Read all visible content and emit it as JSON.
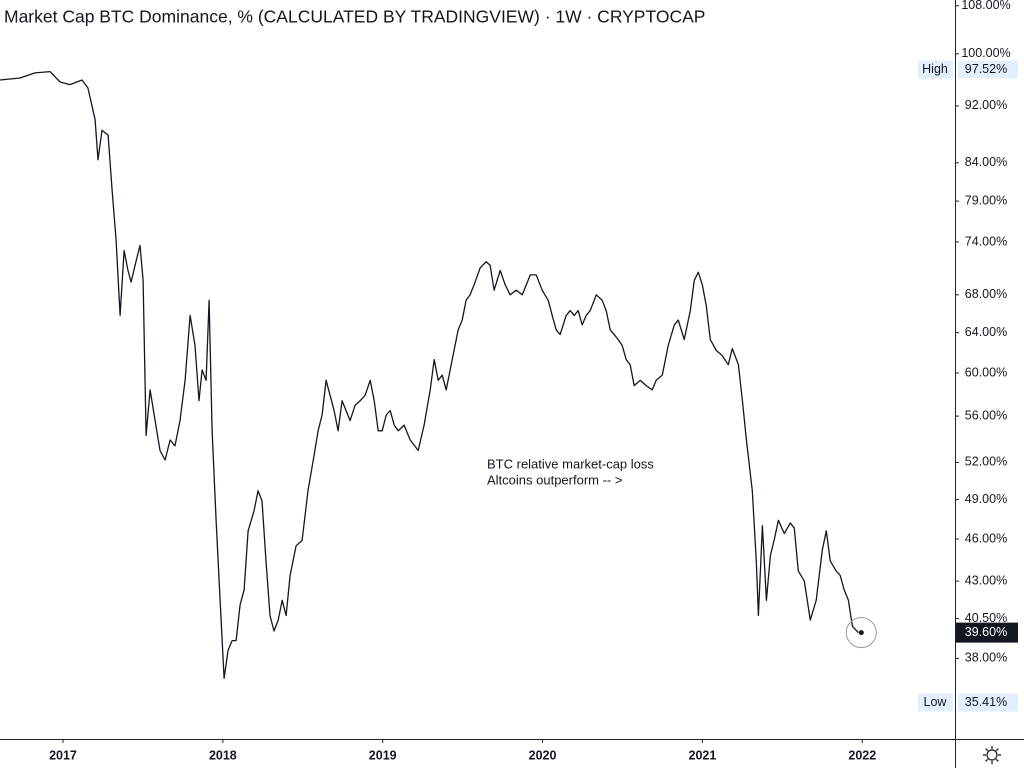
{
  "chart_data": {
    "type": "line",
    "title": "Market Cap BTC Dominance, % (CALCULATED BY TRADINGVIEW) · 1W · CRYPTOCAP",
    "annotations": [
      "BTC relative market-cap loss",
      "Altcoins outperform -- >"
    ],
    "log_scale": true,
    "xlim": [
      2016.606,
      2022.58
    ],
    "ylim": [
      33.4,
      109
    ],
    "xticks": [
      2017,
      2018,
      2019,
      2020,
      2021,
      2022
    ],
    "yticks": [
      {
        "value": 108,
        "label": "108.00%"
      },
      {
        "value": 100,
        "label": "100.00%"
      },
      {
        "value": 92,
        "label": "92.00%"
      },
      {
        "value": 84,
        "label": "84.00%"
      },
      {
        "value": 79,
        "label": "79.00%"
      },
      {
        "value": 74,
        "label": "74.00%"
      },
      {
        "value": 68,
        "label": "68.00%"
      },
      {
        "value": 64,
        "label": "64.00%"
      },
      {
        "value": 60,
        "label": "60.00%"
      },
      {
        "value": 56,
        "label": "56.00%"
      },
      {
        "value": 52,
        "label": "52.00%"
      },
      {
        "value": 49,
        "label": "49.00%"
      },
      {
        "value": 46,
        "label": "46.00%"
      },
      {
        "value": 43,
        "label": "43.00%"
      },
      {
        "value": 40.5,
        "label": "40.50%"
      },
      {
        "value": 38,
        "label": "38.00%"
      }
    ],
    "high": {
      "label": "High",
      "value": 97.52,
      "value_label": "97.52%"
    },
    "low": {
      "label": "Low",
      "value": 35.41,
      "value_label": "35.41%"
    },
    "last": {
      "value": 39.6,
      "value_label": "39.60%"
    },
    "series": [
      {
        "name": "BTC Dominance",
        "color": "#131722",
        "x": [
          2016.606,
          2016.731,
          2016.825,
          2016.919,
          2016.982,
          2017.044,
          2017.119,
          2017.156,
          2017.201,
          2017.219,
          2017.244,
          2017.282,
          2017.307,
          2017.332,
          2017.357,
          2017.382,
          2017.407,
          2017.426,
          2017.451,
          2017.482,
          2017.501,
          2017.52,
          2017.545,
          2017.576,
          2017.607,
          2017.639,
          2017.67,
          2017.701,
          2017.732,
          2017.764,
          2017.795,
          2017.826,
          2017.851,
          2017.87,
          2017.895,
          2017.914,
          2017.933,
          2017.958,
          2017.983,
          2018.008,
          2018.033,
          2018.058,
          2018.083,
          2018.108,
          2018.133,
          2018.158,
          2018.195,
          2018.22,
          2018.245,
          2018.27,
          2018.295,
          2018.32,
          2018.346,
          2018.371,
          2018.396,
          2018.421,
          2018.458,
          2018.496,
          2018.533,
          2018.571,
          2018.596,
          2018.621,
          2018.646,
          2018.671,
          2018.696,
          2018.721,
          2018.746,
          2018.771,
          2018.796,
          2018.828,
          2018.859,
          2018.89,
          2018.922,
          2018.947,
          2018.972,
          2018.997,
          2019.022,
          2019.047,
          2019.072,
          2019.097,
          2019.134,
          2019.172,
          2019.222,
          2019.259,
          2019.297,
          2019.322,
          2019.347,
          2019.372,
          2019.397,
          2019.435,
          2019.472,
          2019.497,
          2019.522,
          2019.547,
          2019.572,
          2019.61,
          2019.647,
          2019.672,
          2019.697,
          2019.735,
          2019.766,
          2019.797,
          2019.835,
          2019.873,
          2019.923,
          2019.96,
          2019.998,
          2020.035,
          2020.06,
          2020.085,
          2020.11,
          2020.148,
          2020.173,
          2020.198,
          2020.223,
          2020.248,
          2020.273,
          2020.298,
          2020.336,
          2020.373,
          2020.398,
          2020.423,
          2020.448,
          2020.473,
          2020.498,
          2020.523,
          2020.548,
          2020.573,
          2020.611,
          2020.648,
          2020.686,
          2020.711,
          2020.749,
          2020.786,
          2020.824,
          2020.849,
          2020.886,
          2020.924,
          2020.949,
          2020.974,
          2020.999,
          2021.024,
          2021.049,
          2021.087,
          2021.124,
          2021.162,
          2021.187,
          2021.225,
          2021.25,
          2021.275,
          2021.312,
          2021.337,
          2021.35,
          2021.375,
          2021.4,
          2021.425,
          2021.45,
          2021.475,
          2021.512,
          2021.55,
          2021.575,
          2021.6,
          2021.637,
          2021.675,
          2021.712,
          2021.75,
          2021.775,
          2021.8,
          2021.837,
          2021.862,
          2021.887,
          2021.913,
          2021.938,
          2021.975
        ],
        "values": [
          95.9,
          96.2,
          97.0,
          97.2,
          95.6,
          95.2,
          95.9,
          94.7,
          90.0,
          84.4,
          88.5,
          87.8,
          80.4,
          74.2,
          65.8,
          73.0,
          70.7,
          69.4,
          71.3,
          73.6,
          69.6,
          54.3,
          58.4,
          55.6,
          53.0,
          52.2,
          53.9,
          53.4,
          55.6,
          59.3,
          65.8,
          62.7,
          57.4,
          60.3,
          59.3,
          67.4,
          54.7,
          47.4,
          41.7,
          36.8,
          38.5,
          39.1,
          39.1,
          41.4,
          42.4,
          46.6,
          48.1,
          49.7,
          48.9,
          44.4,
          40.7,
          39.7,
          40.4,
          41.7,
          40.7,
          43.4,
          45.5,
          45.9,
          49.7,
          52.6,
          54.7,
          56.1,
          59.3,
          57.9,
          56.5,
          54.7,
          57.4,
          56.5,
          55.6,
          57.0,
          57.4,
          57.9,
          59.3,
          57.4,
          54.7,
          54.7,
          56.1,
          56.5,
          55.2,
          54.7,
          55.2,
          53.9,
          53.0,
          55.2,
          58.4,
          61.3,
          59.3,
          59.8,
          58.4,
          61.3,
          64.3,
          65.3,
          67.4,
          68.0,
          69.1,
          71.0,
          71.7,
          71.3,
          68.5,
          70.7,
          69.1,
          68.0,
          68.5,
          68.0,
          70.2,
          70.2,
          68.5,
          67.4,
          65.8,
          64.3,
          63.8,
          65.8,
          66.3,
          65.8,
          66.3,
          64.8,
          65.8,
          66.3,
          68.0,
          67.4,
          66.3,
          64.3,
          63.8,
          63.3,
          62.7,
          61.3,
          60.8,
          58.8,
          59.3,
          58.8,
          58.4,
          59.3,
          59.8,
          62.7,
          64.8,
          65.3,
          63.3,
          66.3,
          69.6,
          70.5,
          69.1,
          66.8,
          63.3,
          62.2,
          61.7,
          60.8,
          62.4,
          60.8,
          57.4,
          53.9,
          49.7,
          44.4,
          40.7,
          47.0,
          41.7,
          44.8,
          46.0,
          47.4,
          46.4,
          47.2,
          46.8,
          43.7,
          43.0,
          40.4,
          41.7,
          45.2,
          46.6,
          44.4,
          43.7,
          43.4,
          42.4,
          41.7,
          40.0,
          39.6
        ]
      }
    ]
  }
}
